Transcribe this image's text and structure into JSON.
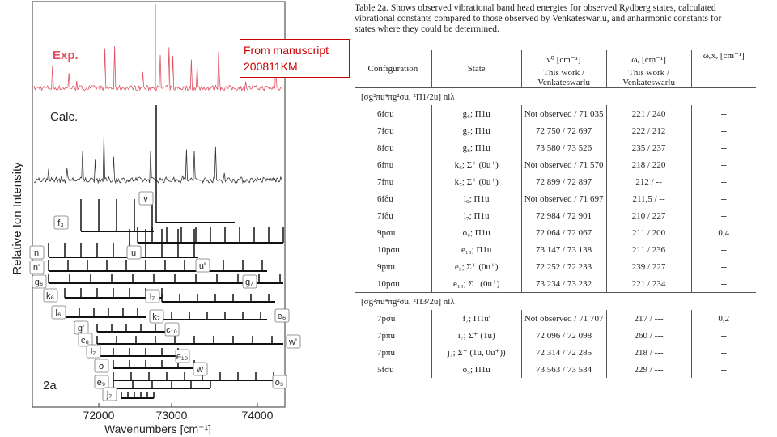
{
  "figure": {
    "exp_label": "Exp.",
    "calc_label": "Calc.",
    "panel_label": "2a",
    "y_label": "Relative Ion Intensity",
    "x_label": "Wavenumbers [cm⁻¹]",
    "x_ticks": [
      "72000",
      "73000",
      "74000"
    ],
    "progressions": [
      "v",
      "f₃",
      "u",
      "u'",
      "n",
      "n'",
      "g₆",
      "g₇",
      "k₆",
      "l₇",
      "l₆",
      "k₇",
      "e₆",
      "g'",
      "c₁₀",
      "c₈",
      "l₇",
      "e₁₀",
      "w'",
      "o",
      "w",
      "e₉",
      "o₃",
      "j₇"
    ]
  },
  "note": {
    "line1": "From manuscript",
    "line2": "200811KM"
  },
  "table": {
    "caption": "Table 2a. Shows observed vibrational band head energies for observed Rydberg states, calculated vibrational constants compared to those observed by Venkateswarlu, and anharmonic constants for states where they could be determined.",
    "headers": [
      "Configuration",
      "State",
      "ν⁰ [cm⁻¹]",
      "ωₑ [cm⁻¹]",
      "ωₑxₑ [cm⁻¹]"
    ],
    "subheaders": [
      "This work / Venkateswarlu",
      "This work / Venkateswarlu"
    ],
    "rows": [
      [
        "[σg²πu⁴πg²σu, ²Π1/2u] nlλ"
      ],
      [
        "6fσu",
        "g₆; Π1u",
        "Not observed / 71 035",
        "221 / 240",
        "--"
      ],
      [
        "7fσu",
        "g₇; Π1u",
        "72 750 / 72 697",
        "222 / 212",
        "--"
      ],
      [
        "8fσu",
        "g₈; Π1u",
        "73 580 / 73 526",
        "235 / 237",
        "--"
      ],
      [
        "6fπu",
        "k₆; Σ⁺ (0u⁺)",
        "Not observed / 71 570",
        "218 / 220",
        "--"
      ],
      [
        "7fπu",
        "k₇; Σ⁺ (0u⁺)",
        "72 899 / 72 897",
        "212 / --",
        "--"
      ],
      [
        "6fδu",
        "l₆; Π1u",
        "Not observed / 71 697",
        "211,5 / --",
        "--"
      ],
      [
        "7fδu",
        "l₇; Π1u",
        "72 984 / 72 901",
        "210 / 227",
        "--"
      ],
      [
        "9pσu",
        "o₉; Π1u",
        "72 064 / 72 067",
        "211 / 200",
        "0,4"
      ],
      [
        "10pσu",
        "e₁₀; Π1u",
        "73 147 / 73 138",
        "211 / 236",
        "--"
      ],
      [
        "9pπu",
        "e₉; Σ⁺ (0u⁺)",
        "72 252 / 72 233",
        "239 / 227",
        "--"
      ],
      [
        "10pσu",
        "e₁₀; Σ⁻ (0u⁺)",
        "73 234 / 73 232",
        "221 / 234",
        "--"
      ],
      [
        "[σg²πu⁴πg²σu, ²Π3/2u] nlλ"
      ],
      [
        "7pσu",
        "f₇; Π1u'",
        "Not observed / 71 707",
        "217 / ---",
        "0,2"
      ],
      [
        "7pπu",
        "i₇; Σ⁺ (1u)",
        "72 096 / 72 098",
        "260 / ---",
        "--"
      ],
      [
        "7pπu",
        "j₇; Σ⁺ (1u, 0u⁺))",
        "72 314 / 72 285",
        "218 / ---",
        "--"
      ],
      [
        "5fσu",
        "o₅; Π1u",
        "73 563 / 73 534",
        "229 / ---",
        "--"
      ]
    ]
  }
}
